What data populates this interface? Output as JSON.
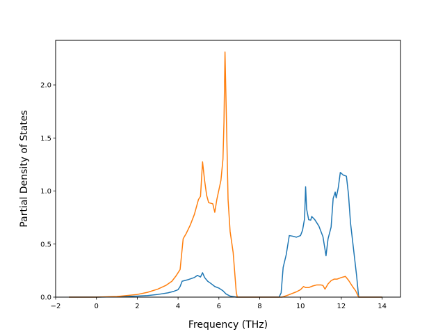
{
  "chart_data": {
    "type": "line",
    "title": "",
    "xlabel": "Frequency (THz)",
    "ylabel": "Partial Density of States",
    "xlim": [
      -2.0,
      14.9
    ],
    "ylim": [
      0.0,
      2.42
    ],
    "xticks": [
      -2,
      0,
      2,
      4,
      6,
      8,
      10,
      12,
      14
    ],
    "xtick_labels": [
      "−2",
      "0",
      "2",
      "4",
      "6",
      "8",
      "10",
      "12",
      "14"
    ],
    "yticks": [
      0.0,
      0.5,
      1.0,
      1.5,
      2.0
    ],
    "ytick_labels": [
      "0.0",
      "0.5",
      "1.0",
      "1.5",
      "2.0"
    ],
    "grid": false,
    "legend": "none",
    "series": [
      {
        "color": "#1f77b4",
        "points": [
          [
            -1.35,
            0.0
          ],
          [
            0.0,
            0.0
          ],
          [
            1.0,
            0.003
          ],
          [
            2.0,
            0.01
          ],
          [
            2.5,
            0.015
          ],
          [
            3.0,
            0.025
          ],
          [
            3.5,
            0.04
          ],
          [
            3.8,
            0.055
          ],
          [
            4.0,
            0.07
          ],
          [
            4.1,
            0.1
          ],
          [
            4.2,
            0.15
          ],
          [
            4.5,
            0.165
          ],
          [
            4.8,
            0.185
          ],
          [
            4.95,
            0.205
          ],
          [
            5.1,
            0.19
          ],
          [
            5.2,
            0.23
          ],
          [
            5.3,
            0.185
          ],
          [
            5.45,
            0.15
          ],
          [
            5.6,
            0.13
          ],
          [
            5.8,
            0.1
          ],
          [
            6.0,
            0.085
          ],
          [
            6.2,
            0.06
          ],
          [
            6.35,
            0.03
          ],
          [
            6.55,
            0.01
          ],
          [
            6.85,
            0.0
          ],
          [
            8.95,
            0.0
          ],
          [
            9.05,
            0.04
          ],
          [
            9.15,
            0.28
          ],
          [
            9.3,
            0.4
          ],
          [
            9.45,
            0.58
          ],
          [
            9.6,
            0.575
          ],
          [
            9.8,
            0.565
          ],
          [
            10.0,
            0.58
          ],
          [
            10.1,
            0.63
          ],
          [
            10.2,
            0.74
          ],
          [
            10.25,
            1.04
          ],
          [
            10.3,
            0.83
          ],
          [
            10.4,
            0.73
          ],
          [
            10.5,
            0.725
          ],
          [
            10.55,
            0.76
          ],
          [
            10.7,
            0.73
          ],
          [
            10.9,
            0.67
          ],
          [
            11.1,
            0.57
          ],
          [
            11.25,
            0.39
          ],
          [
            11.35,
            0.55
          ],
          [
            11.5,
            0.66
          ],
          [
            11.6,
            0.93
          ],
          [
            11.7,
            0.99
          ],
          [
            11.75,
            0.935
          ],
          [
            11.85,
            1.03
          ],
          [
            11.95,
            1.175
          ],
          [
            12.1,
            1.15
          ],
          [
            12.25,
            1.14
          ],
          [
            12.35,
            0.97
          ],
          [
            12.45,
            0.7
          ],
          [
            12.6,
            0.45
          ],
          [
            12.75,
            0.2
          ],
          [
            12.85,
            0.0
          ],
          [
            14.0,
            0.0
          ]
        ]
      },
      {
        "color": "#ff7f0e",
        "points": [
          [
            -1.35,
            0.0
          ],
          [
            0.0,
            0.0
          ],
          [
            1.0,
            0.006
          ],
          [
            2.0,
            0.025
          ],
          [
            2.5,
            0.045
          ],
          [
            3.0,
            0.075
          ],
          [
            3.4,
            0.11
          ],
          [
            3.7,
            0.15
          ],
          [
            3.9,
            0.2
          ],
          [
            4.1,
            0.26
          ],
          [
            4.25,
            0.55
          ],
          [
            4.4,
            0.6
          ],
          [
            4.6,
            0.68
          ],
          [
            4.8,
            0.78
          ],
          [
            5.0,
            0.92
          ],
          [
            5.1,
            0.95
          ],
          [
            5.2,
            1.275
          ],
          [
            5.3,
            1.1
          ],
          [
            5.4,
            0.96
          ],
          [
            5.5,
            0.89
          ],
          [
            5.7,
            0.88
          ],
          [
            5.8,
            0.8
          ],
          [
            5.9,
            0.92
          ],
          [
            6.1,
            1.1
          ],
          [
            6.2,
            1.3
          ],
          [
            6.25,
            1.65
          ],
          [
            6.3,
            2.31
          ],
          [
            6.4,
            1.4
          ],
          [
            6.45,
            0.92
          ],
          [
            6.55,
            0.62
          ],
          [
            6.7,
            0.42
          ],
          [
            6.85,
            0.05
          ],
          [
            6.9,
            0.0
          ],
          [
            9.1,
            0.0
          ],
          [
            9.4,
            0.02
          ],
          [
            9.8,
            0.05
          ],
          [
            10.0,
            0.07
          ],
          [
            10.15,
            0.1
          ],
          [
            10.25,
            0.09
          ],
          [
            10.4,
            0.09
          ],
          [
            10.6,
            0.105
          ],
          [
            10.8,
            0.115
          ],
          [
            11.0,
            0.115
          ],
          [
            11.1,
            0.11
          ],
          [
            11.2,
            0.075
          ],
          [
            11.35,
            0.125
          ],
          [
            11.5,
            0.155
          ],
          [
            11.65,
            0.17
          ],
          [
            11.8,
            0.17
          ],
          [
            12.0,
            0.185
          ],
          [
            12.2,
            0.195
          ],
          [
            12.35,
            0.16
          ],
          [
            12.55,
            0.1
          ],
          [
            12.7,
            0.06
          ],
          [
            12.85,
            0.0
          ],
          [
            14.0,
            0.0
          ]
        ]
      }
    ]
  }
}
